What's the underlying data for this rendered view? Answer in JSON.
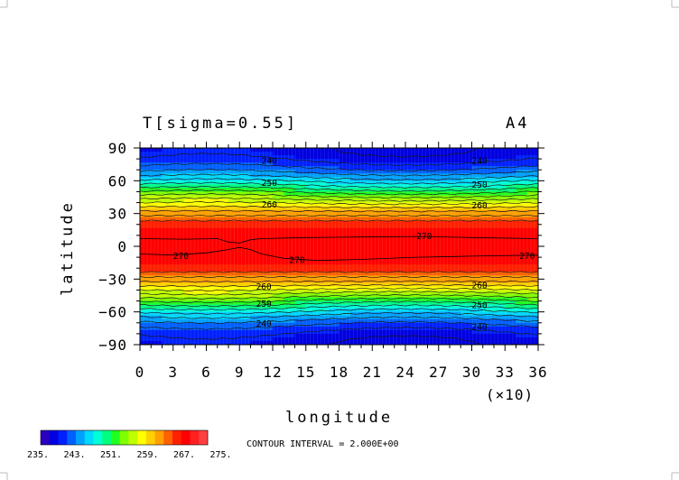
{
  "chart_data": {
    "type": "heatmap",
    "title": "T[sigma=0.55]",
    "panel_label": "A4",
    "xlabel": "longitude",
    "ylabel": "latitude",
    "x_multiplier": "(×10)",
    "xlim": [
      0,
      36
    ],
    "ylim": [
      -90,
      90
    ],
    "x_ticks": [
      "0",
      "3",
      "6",
      "9",
      "12",
      "15",
      "18",
      "21",
      "24",
      "27",
      "30",
      "33",
      "36"
    ],
    "y_ticks": [
      "90",
      "60",
      "30",
      "0",
      "−30",
      "−60",
      "−90"
    ],
    "y_tick_values": [
      90,
      60,
      30,
      0,
      -30,
      -60,
      -90
    ],
    "colorbar": {
      "tick_labels": [
        "235.",
        "243.",
        "251.",
        "259.",
        "267.",
        "275."
      ],
      "range": [
        235,
        277
      ],
      "colors": [
        "#2800c0",
        "#0000e0",
        "#0020ff",
        "#0060ff",
        "#00a0ff",
        "#00d8ff",
        "#00ffd8",
        "#00ff80",
        "#20ff20",
        "#80ff00",
        "#c0ff00",
        "#ffff00",
        "#ffd000",
        "#ffa000",
        "#ff6000",
        "#ff2000",
        "#ff0000",
        "#ff2020",
        "#ff4040"
      ]
    },
    "contour_interval_text": "CONTOUR INTERVAL = 2.000E+00",
    "contour_labels": [
      {
        "value": "240",
        "lon": 11,
        "lat": 78
      },
      {
        "value": "240",
        "lon": 30,
        "lat": 78
      },
      {
        "value": "250",
        "lon": 11,
        "lat": 58
      },
      {
        "value": "250",
        "lon": 30,
        "lat": 56
      },
      {
        "value": "260",
        "lon": 11,
        "lat": 38
      },
      {
        "value": "260",
        "lon": 30,
        "lat": 37
      },
      {
        "value": "270",
        "lon": 25,
        "lat": 9
      },
      {
        "value": "270",
        "lon": 3,
        "lat": -9
      },
      {
        "value": "270",
        "lon": 13.5,
        "lat": -13
      },
      {
        "value": "270",
        "lon": 34.3,
        "lat": -9
      },
      {
        "value": "260",
        "lon": 10.5,
        "lat": -37
      },
      {
        "value": "260",
        "lon": 30,
        "lat": -36
      },
      {
        "value": "250",
        "lon": 10.5,
        "lat": -53
      },
      {
        "value": "250",
        "lon": 30,
        "lat": -54
      },
      {
        "value": "240",
        "lon": 10.5,
        "lat": -71
      },
      {
        "value": "240",
        "lon": 30,
        "lat": -74
      }
    ]
  }
}
